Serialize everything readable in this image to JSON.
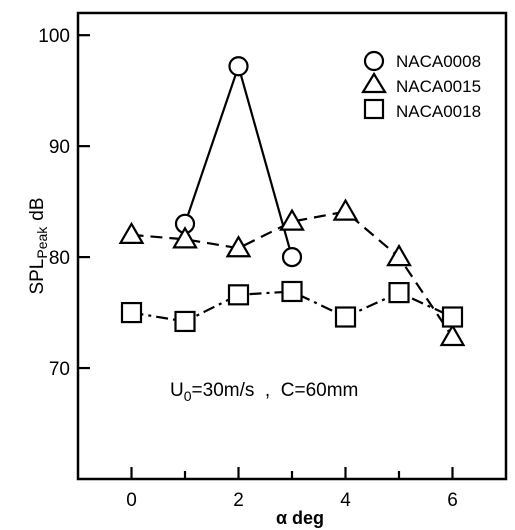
{
  "chart_data": {
    "type": "line",
    "xlabel": "α deg",
    "ylabel": "SPL",
    "ylabel_sub": "Peak",
    "ylabel_unit": "dB",
    "xlim": [
      -1,
      7
    ],
    "ylim": [
      60,
      102
    ],
    "xticks": [
      0,
      2,
      4,
      6
    ],
    "yticks": [
      70,
      80,
      90,
      100
    ],
    "grid": false,
    "legend_position": "top-right",
    "series": [
      {
        "name": "NACA0008",
        "marker": "circle",
        "linestyle": "solid",
        "x": [
          1,
          2,
          3
        ],
        "y": [
          83,
          97.2,
          80
        ]
      },
      {
        "name": "NACA0015",
        "marker": "triangle",
        "linestyle": "dashed",
        "x": [
          0,
          1,
          2,
          3,
          4,
          5,
          6
        ],
        "y": [
          82,
          81.6,
          80.8,
          83.2,
          84.1,
          80,
          72.8
        ]
      },
      {
        "name": "NACA0018",
        "marker": "square",
        "linestyle": "dashdot",
        "x": [
          0,
          1,
          2,
          3,
          4,
          5,
          6
        ],
        "y": [
          75,
          74.2,
          76.6,
          76.9,
          74.6,
          76.8,
          74.6
        ]
      }
    ],
    "annotation": {
      "u_symbol": "U",
      "u_subscript": "0",
      "u_rest": "=30m/s  ,  C=60mm"
    }
  }
}
